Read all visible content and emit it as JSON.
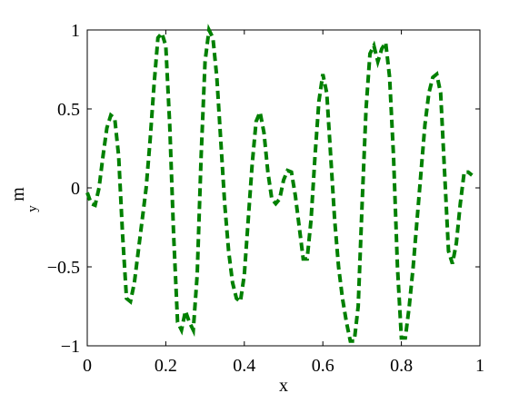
{
  "chart_data": {
    "type": "line",
    "xlabel": "x",
    "ylabel": "m",
    "ylabel_subscript": "y",
    "x": [
      0,
      0.01,
      0.02,
      0.03,
      0.04,
      0.05,
      0.06,
      0.07,
      0.08,
      0.09,
      0.1,
      0.11,
      0.12,
      0.13,
      0.14,
      0.15,
      0.16,
      0.17,
      0.18,
      0.19,
      0.2,
      0.21,
      0.22,
      0.23,
      0.24,
      0.25,
      0.26,
      0.27,
      0.28,
      0.29,
      0.3,
      0.31,
      0.32,
      0.33,
      0.34,
      0.35,
      0.36,
      0.37,
      0.38,
      0.39,
      0.4,
      0.41,
      0.42,
      0.43,
      0.44,
      0.45,
      0.46,
      0.47,
      0.48,
      0.49,
      0.5,
      0.51,
      0.52,
      0.53,
      0.54,
      0.55,
      0.56,
      0.57,
      0.58,
      0.59,
      0.6,
      0.61,
      0.62,
      0.63,
      0.64,
      0.65,
      0.66,
      0.67,
      0.68,
      0.69,
      0.7,
      0.71,
      0.72,
      0.73,
      0.74,
      0.75,
      0.76,
      0.77,
      0.78,
      0.79,
      0.8,
      0.81,
      0.82,
      0.83,
      0.84,
      0.85,
      0.86,
      0.87,
      0.88,
      0.89,
      0.9,
      0.91,
      0.92,
      0.93,
      0.94,
      0.95,
      0.96,
      0.97,
      0.98
    ],
    "series": [
      {
        "color": "#008000",
        "values": [
          -0.03,
          -0.1,
          -0.11,
          0,
          0.2,
          0.38,
          0.46,
          0.44,
          0.2,
          -0.3,
          -0.7,
          -0.72,
          -0.6,
          -0.4,
          -0.2,
          0,
          0.3,
          0.65,
          0.95,
          0.98,
          0.9,
          0.4,
          -0.3,
          -0.85,
          -0.9,
          -0.78,
          -0.85,
          -0.9,
          -0.55,
          0.2,
          0.8,
          1,
          0.95,
          0.7,
          0.3,
          -0.1,
          -0.4,
          -0.6,
          -0.7,
          -0.72,
          -0.55,
          -0.2,
          0.15,
          0.42,
          0.48,
          0.35,
          0.1,
          -0.07,
          -0.1,
          -0.07,
          0.05,
          0.11,
          0.1,
          -0.05,
          -0.25,
          -0.45,
          -0.45,
          -0.2,
          0.2,
          0.55,
          0.72,
          0.6,
          0.2,
          -0.2,
          -0.5,
          -0.7,
          -0.85,
          -0.97,
          -0.97,
          -0.75,
          -0.1,
          0.5,
          0.85,
          0.9,
          0.8,
          0.88,
          0.92,
          0.7,
          0.2,
          -0.5,
          -0.95,
          -0.95,
          -0.75,
          -0.5,
          -0.2,
          0.1,
          0.4,
          0.6,
          0.7,
          0.72,
          0.6,
          0.1,
          -0.4,
          -0.48,
          -0.35,
          -0.1,
          0.1,
          0.1,
          0.08
        ]
      }
    ],
    "xlim": [
      0,
      1
    ],
    "ylim": [
      -1,
      1
    ],
    "xticks": [
      0,
      0.2,
      0.4,
      0.6,
      0.8,
      1
    ],
    "yticks": [
      {
        "value": -1,
        "label": "−1"
      },
      {
        "value": -0.5,
        "label": "−0.5"
      },
      0,
      0.5,
      1
    ]
  }
}
